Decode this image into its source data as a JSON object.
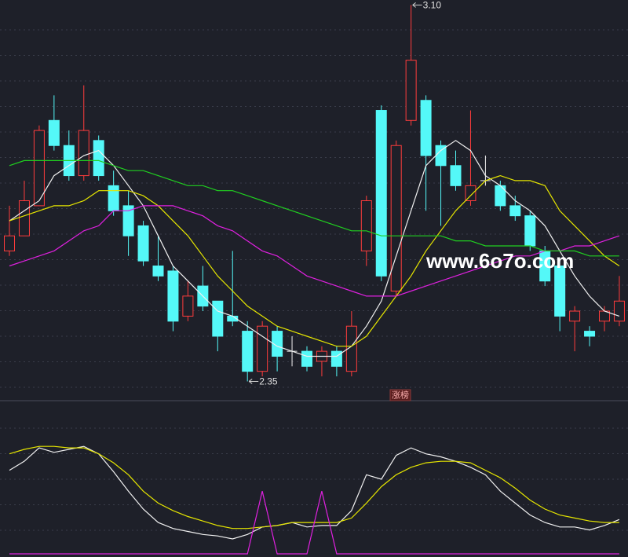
{
  "chart_data": [
    {
      "type": "candlestick",
      "open": [
        2.61,
        2.64,
        2.7,
        2.87,
        2.82,
        2.76,
        2.83,
        2.74,
        2.7,
        2.66,
        2.58,
        2.57,
        2.48,
        2.54,
        2.51,
        2.48,
        2.45,
        2.37,
        2.45,
        2.41,
        2.41,
        2.39,
        2.41,
        2.37,
        2.61,
        2.89,
        2.53,
        2.87,
        2.91,
        2.82,
        2.78,
        2.71,
        2.75,
        2.74,
        2.7,
        2.68,
        2.61,
        2.58,
        2.47,
        2.45,
        2.47,
        2.47
      ],
      "high": [
        2.7,
        2.75,
        2.86,
        2.92,
        2.85,
        2.94,
        2.84,
        2.77,
        2.73,
        2.67,
        2.64,
        2.58,
        2.55,
        2.58,
        2.51,
        2.61,
        2.47,
        2.47,
        2.46,
        2.44,
        2.42,
        2.42,
        2.42,
        2.49,
        2.72,
        2.9,
        2.83,
        3.1,
        2.92,
        2.83,
        2.81,
        2.89,
        2.8,
        2.75,
        2.72,
        2.69,
        2.62,
        2.59,
        2.5,
        2.46,
        2.5,
        2.56
      ],
      "low": [
        2.6,
        2.64,
        2.7,
        2.81,
        2.75,
        2.75,
        2.75,
        2.68,
        2.6,
        2.58,
        2.55,
        2.45,
        2.47,
        2.49,
        2.41,
        2.46,
        2.35,
        2.36,
        2.37,
        2.38,
        2.37,
        2.36,
        2.36,
        2.36,
        2.58,
        2.55,
        2.52,
        2.86,
        2.69,
        2.66,
        2.73,
        2.7,
        2.74,
        2.69,
        2.67,
        2.61,
        2.54,
        2.45,
        2.41,
        2.42,
        2.45,
        2.46
      ],
      "close": [
        2.64,
        2.71,
        2.85,
        2.82,
        2.76,
        2.85,
        2.76,
        2.69,
        2.64,
        2.59,
        2.56,
        2.47,
        2.52,
        2.5,
        2.44,
        2.47,
        2.37,
        2.46,
        2.4,
        2.41,
        2.38,
        2.41,
        2.38,
        2.46,
        2.71,
        2.56,
        2.82,
        2.99,
        2.8,
        2.78,
        2.74,
        2.74,
        2.75,
        2.7,
        2.68,
        2.62,
        2.55,
        2.48,
        2.49,
        2.44,
        2.49,
        2.51
      ],
      "up_color": "#ff3c3c",
      "down_color": "#54f8f8",
      "series": [
        {
          "color": "#f0f0f0",
          "values": [
            2.67,
            2.69,
            2.71,
            2.76,
            2.78,
            2.8,
            2.81,
            2.78,
            2.74,
            2.7,
            2.64,
            2.58,
            2.55,
            2.52,
            2.49,
            2.48,
            2.46,
            2.44,
            2.42,
            2.41,
            2.4,
            2.4,
            2.4,
            2.42,
            2.46,
            2.51,
            2.6,
            2.69,
            2.78,
            2.81,
            2.83,
            2.81,
            2.76,
            2.74,
            2.71,
            2.69,
            2.66,
            2.61,
            2.56,
            2.52,
            2.49,
            2.48
          ]
        },
        {
          "color": "#e6e600",
          "values": [
            2.67,
            2.68,
            2.69,
            2.7,
            2.7,
            2.71,
            2.73,
            2.73,
            2.73,
            2.72,
            2.7,
            2.67,
            2.64,
            2.6,
            2.56,
            2.53,
            2.5,
            2.48,
            2.46,
            2.45,
            2.44,
            2.43,
            2.42,
            2.42,
            2.44,
            2.48,
            2.52,
            2.56,
            2.61,
            2.65,
            2.69,
            2.72,
            2.75,
            2.76,
            2.75,
            2.75,
            2.74,
            2.69,
            2.66,
            2.63,
            2.6,
            2.58
          ]
        },
        {
          "color": "#e020e0",
          "values": [
            2.58,
            2.59,
            2.6,
            2.61,
            2.63,
            2.65,
            2.66,
            2.69,
            2.69,
            2.7,
            2.7,
            2.7,
            2.69,
            2.68,
            2.66,
            2.65,
            2.63,
            2.61,
            2.6,
            2.58,
            2.56,
            2.55,
            2.54,
            2.53,
            2.52,
            2.52,
            2.52,
            2.53,
            2.54,
            2.55,
            2.56,
            2.57,
            2.58,
            2.59,
            2.6,
            2.6,
            2.61,
            2.61,
            2.62,
            2.62,
            2.63,
            2.64
          ]
        },
        {
          "color": "#20d020",
          "values": [
            2.78,
            2.79,
            2.79,
            2.79,
            2.79,
            2.79,
            2.79,
            2.78,
            2.77,
            2.77,
            2.76,
            2.75,
            2.74,
            2.74,
            2.73,
            2.73,
            2.72,
            2.71,
            2.7,
            2.69,
            2.68,
            2.67,
            2.66,
            2.65,
            2.65,
            2.64,
            2.64,
            2.64,
            2.64,
            2.64,
            2.63,
            2.63,
            2.62,
            2.62,
            2.62,
            2.62,
            2.61,
            2.61,
            2.61,
            2.6,
            2.6,
            2.6
          ]
        }
      ],
      "ylim": [
        2.31,
        3.11
      ],
      "annotations": [
        {
          "value": 3.1,
          "label": "3.10"
        },
        {
          "value": 2.35,
          "label": "2.35"
        }
      ],
      "tag": "涨榜",
      "watermark": "www.6o7o.com"
    },
    {
      "type": "line",
      "series": [
        {
          "color": "#f0f0f0",
          "values": [
            56,
            62,
            71,
            68,
            70,
            72,
            67,
            55,
            42,
            30,
            21,
            17,
            15,
            13,
            12,
            10,
            13,
            18,
            19,
            21,
            18,
            19,
            19,
            29,
            53,
            50,
            66,
            71,
            67,
            65,
            62,
            58,
            53,
            42,
            34,
            26,
            21,
            18,
            18,
            16,
            19,
            23
          ]
        },
        {
          "color": "#e6e600",
          "values": [
            67,
            70,
            72,
            72,
            71,
            71,
            67,
            61,
            53,
            42,
            34,
            29,
            25,
            22,
            19,
            17,
            17,
            18,
            19,
            21,
            21,
            21,
            21,
            24,
            34,
            45,
            53,
            58,
            61,
            62,
            62,
            61,
            56,
            51,
            44,
            36,
            30,
            26,
            24,
            22,
            21,
            21
          ]
        },
        {
          "color": "#e020e0",
          "values": [
            0,
            0,
            0,
            0,
            0,
            0,
            0,
            0,
            0,
            0,
            0,
            0,
            0,
            0,
            0,
            0,
            0,
            42,
            0,
            0,
            0,
            42,
            0,
            0,
            0,
            0,
            0,
            0,
            0,
            0,
            0,
            0,
            0,
            0,
            0,
            0,
            0,
            0,
            0,
            0,
            0,
            0
          ]
        }
      ],
      "ylim": [
        0,
        100
      ]
    }
  ]
}
